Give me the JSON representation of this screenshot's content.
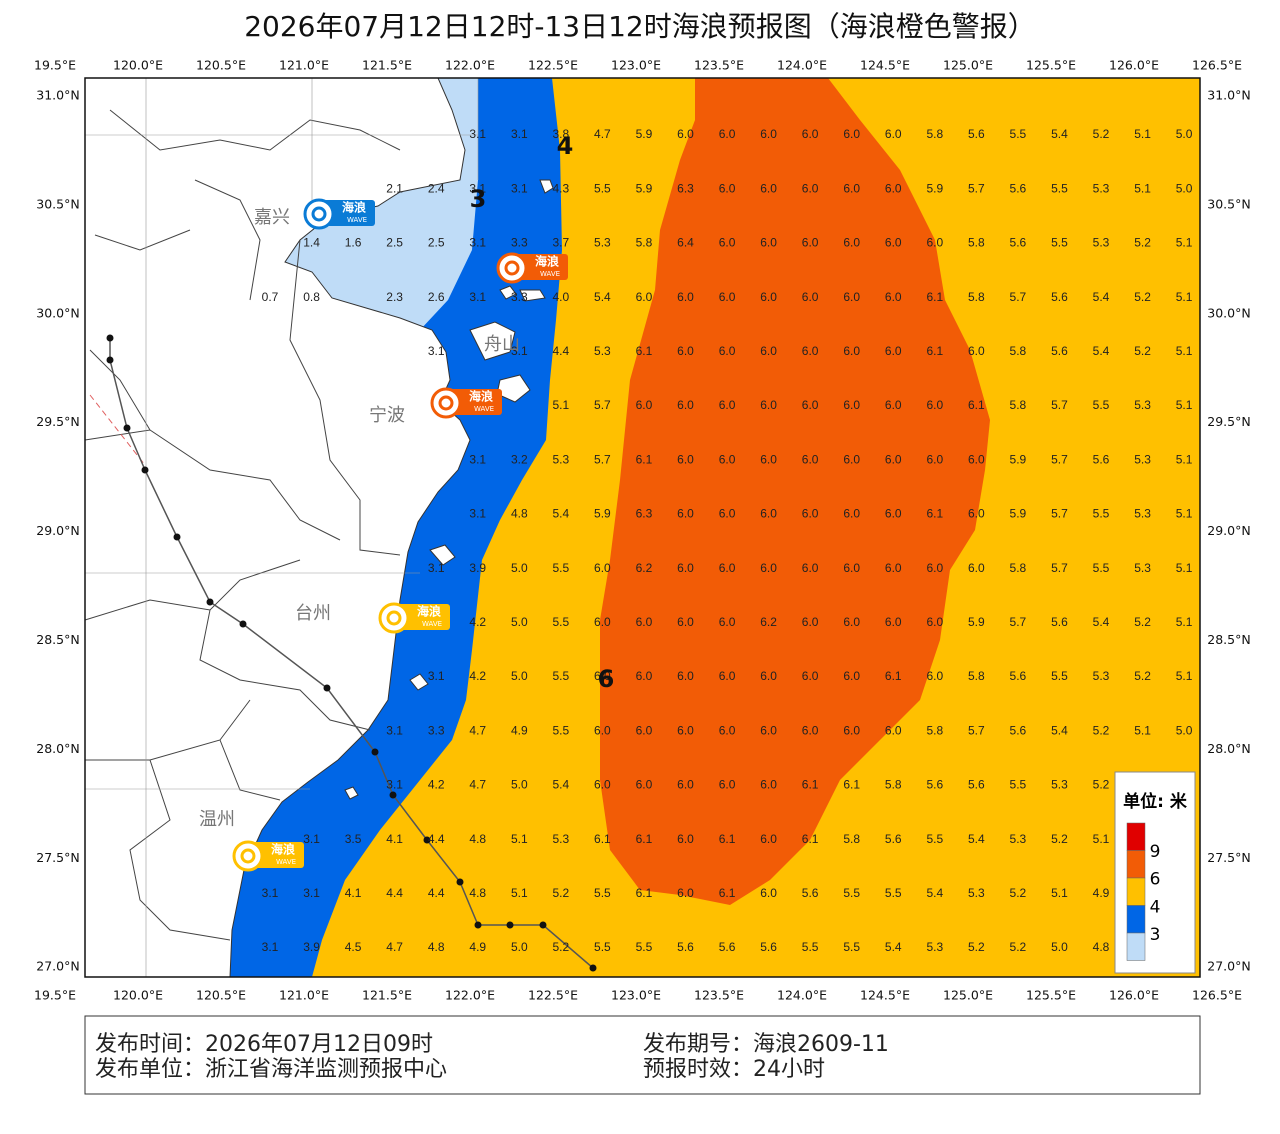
{
  "title": "2026年07月12日12时-13日12时海浪预报图（海浪橙色警报）",
  "lon_labels": [
    "19.5°E",
    "120.0°E",
    "120.5°E",
    "121.0°E",
    "121.5°E",
    "122.0°E",
    "122.5°E",
    "123.0°E",
    "123.5°E",
    "124.0°E",
    "124.5°E",
    "125.0°E",
    "125.5°E",
    "126.0°E",
    "126.5°E"
  ],
  "lat_labels": [
    "31.0°N",
    "30.5°N",
    "30.0°N",
    "29.5°N",
    "29.0°N",
    "28.5°N",
    "28.0°N",
    "27.5°N",
    "27.0°N"
  ],
  "cities": [
    "嘉兴",
    "舟山",
    "宁波",
    "台州",
    "温州"
  ],
  "contour_labels": [
    "4",
    "3",
    "6"
  ],
  "badges": [
    {
      "label": "海浪",
      "tag": "WAVE"
    },
    {
      "label": "海浪",
      "tag": "WAVE"
    },
    {
      "label": "海浪",
      "tag": "WAVE"
    },
    {
      "label": "海浪",
      "tag": "WAVE"
    },
    {
      "label": "海浪",
      "tag": "WAVE"
    }
  ],
  "wave_heights": [
    [
      null,
      null,
      null,
      null,
      null,
      "3.1",
      "3.1",
      "3.8",
      "4.7",
      "5.9",
      "6.0",
      "6.0",
      "6.0",
      "6.0",
      "6.0",
      "6.0",
      "5.8",
      "5.6",
      "5.5",
      "5.4",
      "5.2",
      "5.1",
      "5.0"
    ],
    [
      null,
      null,
      null,
      "2.1",
      "2.4",
      "3.1",
      "3.1",
      "4.3",
      "5.5",
      "5.9",
      "6.3",
      "6.0",
      "6.0",
      "6.0",
      "6.0",
      "6.0",
      "5.9",
      "5.7",
      "5.6",
      "5.5",
      "5.3",
      "5.1",
      "5.0"
    ],
    [
      null,
      "1.4",
      "1.6",
      "2.5",
      "2.5",
      "3.1",
      "3.3",
      "3.7",
      "5.3",
      "5.8",
      "6.4",
      "6.0",
      "6.0",
      "6.0",
      "6.0",
      "6.0",
      "6.0",
      "5.8",
      "5.6",
      "5.5",
      "5.3",
      "5.2",
      "5.1"
    ],
    [
      "0.7",
      "0.8",
      null,
      "2.3",
      "2.6",
      "3.1",
      "3.3",
      "4.0",
      "5.4",
      "6.0",
      "6.0",
      "6.0",
      "6.0",
      "6.0",
      "6.0",
      "6.0",
      "6.1",
      "5.8",
      "5.7",
      "5.6",
      "5.4",
      "5.2",
      "5.1"
    ],
    [
      null,
      null,
      null,
      null,
      "3.1",
      null,
      "3.1",
      "4.4",
      "5.3",
      "6.1",
      "6.0",
      "6.0",
      "6.0",
      "6.0",
      "6.0",
      "6.0",
      "6.1",
      "6.0",
      "5.8",
      "5.6",
      "5.4",
      "5.2",
      "5.1"
    ],
    [
      null,
      null,
      null,
      null,
      null,
      null,
      null,
      "5.1",
      "5.7",
      "6.0",
      "6.0",
      "6.0",
      "6.0",
      "6.0",
      "6.0",
      "6.0",
      "6.0",
      "6.1",
      "5.8",
      "5.7",
      "5.5",
      "5.3",
      "5.1"
    ],
    [
      null,
      null,
      null,
      null,
      null,
      "3.1",
      "3.2",
      "5.3",
      "5.7",
      "6.1",
      "6.0",
      "6.0",
      "6.0",
      "6.0",
      "6.0",
      "6.0",
      "6.0",
      "6.0",
      "5.9",
      "5.7",
      "5.6",
      "5.3",
      "5.1"
    ],
    [
      null,
      null,
      null,
      null,
      null,
      "3.1",
      "4.8",
      "5.4",
      "5.9",
      "6.3",
      "6.0",
      "6.0",
      "6.0",
      "6.0",
      "6.0",
      "6.0",
      "6.1",
      "6.0",
      "5.9",
      "5.7",
      "5.5",
      "5.3",
      "5.1"
    ],
    [
      null,
      null,
      null,
      null,
      "3.1",
      "3.9",
      "5.0",
      "5.5",
      "6.0",
      "6.2",
      "6.0",
      "6.0",
      "6.0",
      "6.0",
      "6.0",
      "6.0",
      "6.0",
      "6.0",
      "5.8",
      "5.7",
      "5.5",
      "5.3",
      "5.1"
    ],
    [
      null,
      null,
      null,
      null,
      null,
      "4.2",
      "5.0",
      "5.5",
      "6.0",
      "6.0",
      "6.0",
      "6.0",
      "6.2",
      "6.0",
      "6.0",
      "6.0",
      "6.0",
      "5.9",
      "5.7",
      "5.6",
      "5.4",
      "5.2",
      "5.1"
    ],
    [
      null,
      null,
      null,
      null,
      "3.1",
      "4.2",
      "5.0",
      "5.5",
      "6.0",
      "6.0",
      "6.0",
      "6.0",
      "6.0",
      "6.0",
      "6.0",
      "6.1",
      "6.0",
      "5.8",
      "5.6",
      "5.5",
      "5.3",
      "5.2",
      "5.1"
    ],
    [
      null,
      null,
      null,
      "3.1",
      "3.3",
      "4.7",
      "4.9",
      "5.5",
      "6.0",
      "6.0",
      "6.0",
      "6.0",
      "6.0",
      "6.0",
      "6.0",
      "6.0",
      "5.8",
      "5.7",
      "5.6",
      "5.4",
      "5.2",
      "5.1",
      "5.0"
    ],
    [
      null,
      null,
      null,
      "3.1",
      "4.2",
      "4.7",
      "5.0",
      "5.4",
      "6.0",
      "6.0",
      "6.0",
      "6.0",
      "6.0",
      "6.1",
      "6.1",
      "5.8",
      "5.6",
      "5.6",
      "5.5",
      "5.3",
      "5.2",
      null,
      null
    ],
    [
      null,
      "3.1",
      "3.5",
      "4.1",
      "4.4",
      "4.8",
      "5.1",
      "5.3",
      "6.1",
      "6.1",
      "6.0",
      "6.1",
      "6.0",
      "6.1",
      "5.8",
      "5.6",
      "5.5",
      "5.4",
      "5.3",
      "5.2",
      "5.1",
      null,
      null
    ],
    [
      "3.1",
      "3.1",
      "4.1",
      "4.4",
      "4.4",
      "4.8",
      "5.1",
      "5.2",
      "5.5",
      "6.1",
      "6.0",
      "6.1",
      "6.0",
      "5.6",
      "5.5",
      "5.5",
      "5.4",
      "5.3",
      "5.2",
      "5.1",
      "4.9",
      null,
      null
    ],
    [
      "3.1",
      "3.9",
      "4.5",
      "4.7",
      "4.8",
      "4.9",
      "5.0",
      "5.2",
      "5.5",
      "5.5",
      "5.6",
      "5.6",
      "5.6",
      "5.5",
      "5.5",
      "5.4",
      "5.3",
      "5.2",
      "5.2",
      "5.0",
      "4.8",
      null,
      null
    ]
  ],
  "legend": {
    "title": "单位: 米",
    "levels": [
      "9",
      "6",
      "4",
      "3"
    ]
  },
  "footer": {
    "issue_time": "发布时间：2026年07月12日09时",
    "issuer": "发布单位：浙江省海洋监测预报中心",
    "issue_no": "发布期号：海浪2609-11",
    "valid": "预报时效：24小时"
  }
}
